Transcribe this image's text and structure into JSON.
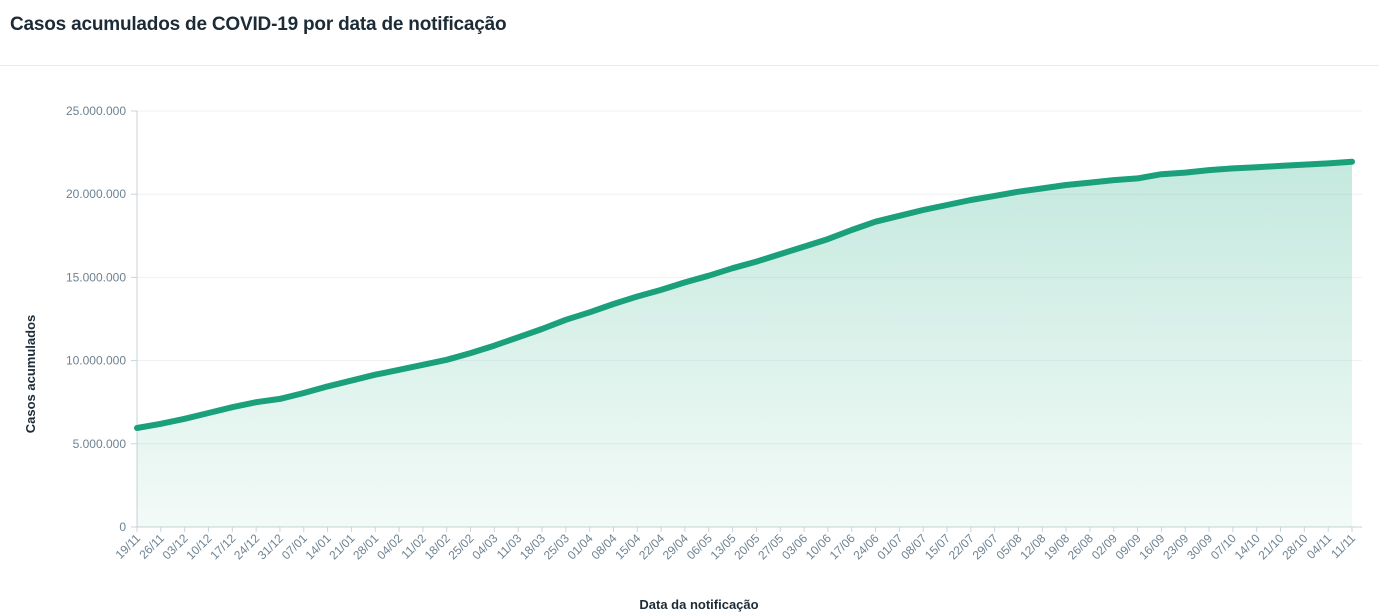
{
  "header": {
    "title": "Casos acumulados de COVID-19 por data de notificação"
  },
  "chart_data": {
    "type": "area",
    "title": "Casos acumulados de COVID-19 por data de notificação",
    "xlabel": "Data da notificação",
    "ylabel": "Casos acumulados",
    "ylim": [
      0,
      25000000
    ],
    "yticks": [
      "0",
      "5.000.000",
      "10.000.000",
      "15.000.000",
      "20.000.000",
      "25.000.000"
    ],
    "ytick_values": [
      0,
      5000000,
      10000000,
      15000000,
      20000000,
      25000000
    ],
    "grid": true,
    "line_color": "#1aa07a",
    "fill_color": "#2eb089",
    "categories": [
      "19/11",
      "26/11",
      "03/12",
      "10/12",
      "17/12",
      "24/12",
      "31/12",
      "07/01",
      "14/01",
      "21/01",
      "28/01",
      "04/02",
      "11/02",
      "18/02",
      "25/02",
      "04/03",
      "11/03",
      "18/03",
      "25/03",
      "01/04",
      "08/04",
      "15/04",
      "22/04",
      "29/04",
      "06/05",
      "13/05",
      "20/05",
      "27/05",
      "03/06",
      "10/06",
      "17/06",
      "24/06",
      "01/07",
      "08/07",
      "15/07",
      "22/07",
      "29/07",
      "05/08",
      "12/08",
      "19/08",
      "26/08",
      "02/09",
      "09/09",
      "16/09",
      "23/09",
      "30/09",
      "07/10",
      "14/10",
      "21/10",
      "28/10",
      "04/11",
      "11/11"
    ],
    "series": [
      {
        "values": [
          5950000,
          6200000,
          6500000,
          6850000,
          7200000,
          7500000,
          7700000,
          8050000,
          8450000,
          8800000,
          9150000,
          9450000,
          9750000,
          10050000,
          10450000,
          10900000,
          11400000,
          11900000,
          12450000,
          12900000,
          13400000,
          13850000,
          14250000,
          14700000,
          15100000,
          15550000,
          15950000,
          16400000,
          16850000,
          17300000,
          17850000,
          18350000,
          18700000,
          19050000,
          19350000,
          19650000,
          19900000,
          20150000,
          20350000,
          20550000,
          20700000,
          20850000,
          20950000,
          21200000,
          21300000,
          21450000,
          21550000,
          21620000,
          21700000,
          21780000,
          21850000,
          21950000
        ]
      }
    ]
  }
}
